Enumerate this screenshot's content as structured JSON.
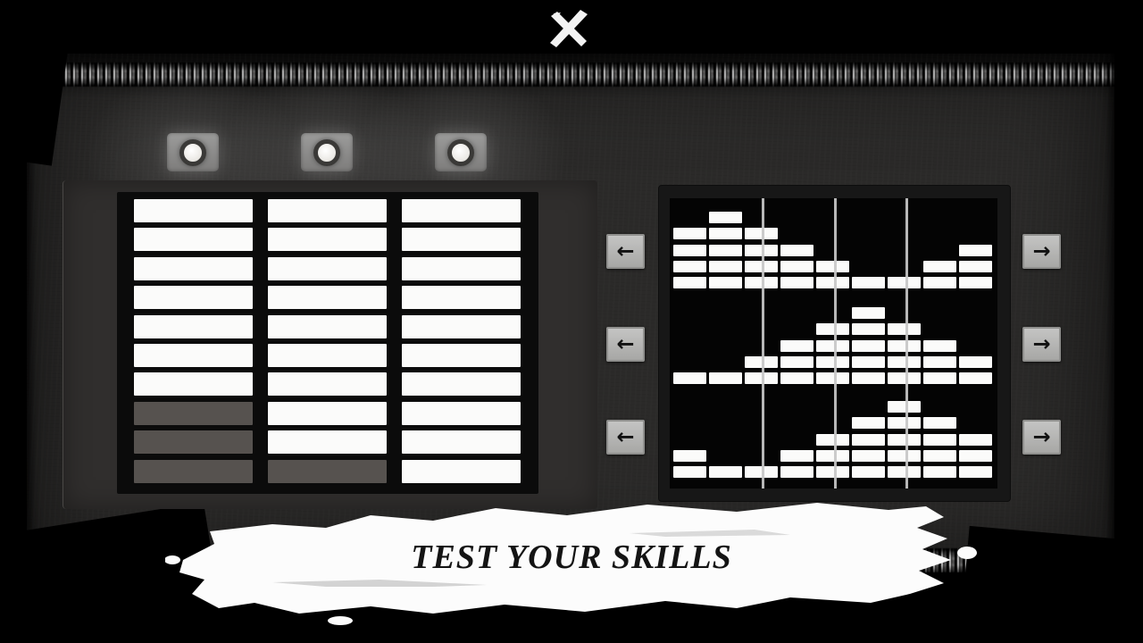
{
  "app": {
    "title_banner": "TEST YOUR SKILLS"
  },
  "close_button": {
    "icon": "close-x",
    "glyph": "✕"
  },
  "status_lights": [
    {
      "id": "light-1",
      "state": "lit"
    },
    {
      "id": "light-2",
      "state": "lit"
    },
    {
      "id": "light-3",
      "state": "lit"
    }
  ],
  "answer_board": {
    "columns": 3,
    "rows": 10,
    "cells": [
      [
        "white",
        "white",
        "white",
        "white",
        "white",
        "white",
        "white",
        "dim",
        "dim",
        "dim"
      ],
      [
        "white",
        "white",
        "white",
        "white",
        "white",
        "white",
        "white",
        "white",
        "white",
        "dim"
      ],
      [
        "white",
        "white",
        "white",
        "white",
        "white",
        "white",
        "white",
        "white",
        "white",
        "white"
      ]
    ]
  },
  "pattern_board": {
    "columns": 9,
    "rows_per_section": 5,
    "sections": [
      {
        "id": "section-1",
        "heights": [
          4,
          5,
          4,
          3,
          2,
          1,
          1,
          2,
          3
        ]
      },
      {
        "id": "section-2",
        "heights": [
          1,
          1,
          2,
          3,
          4,
          5,
          4,
          3,
          2
        ]
      },
      {
        "id": "section-3",
        "heights": [
          2,
          1,
          1,
          2,
          3,
          4,
          5,
          4,
          3
        ]
      }
    ],
    "divider_percents": [
      28,
      50,
      72
    ]
  },
  "controls": {
    "left_arrows": [
      {
        "glyph": "←"
      },
      {
        "glyph": "←"
      },
      {
        "glyph": "←"
      }
    ],
    "right_arrows": [
      {
        "glyph": "→"
      },
      {
        "glyph": "→"
      },
      {
        "glyph": "→"
      }
    ]
  },
  "colors": {
    "background": "#2b2a29",
    "frame": "#000000",
    "bar_white": "#fbfbfa",
    "bar_dim": "#56524f",
    "board_black": "#0b0b0b",
    "divider_gray": "#c7c7c7",
    "button_gray": "#b5b5b3",
    "banner_white": "#fcfcfc",
    "banner_text": "#141414"
  }
}
